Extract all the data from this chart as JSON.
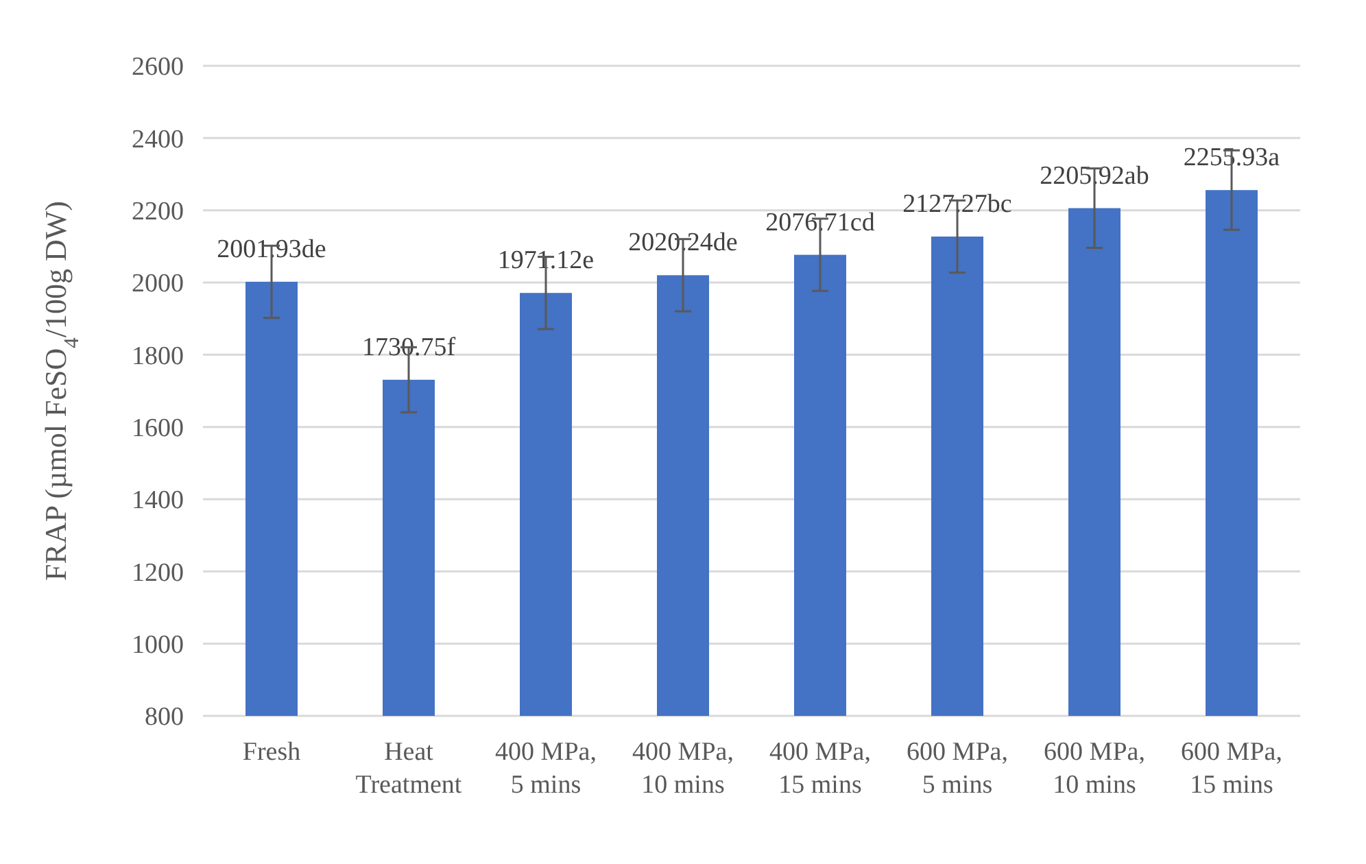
{
  "chart_data": {
    "type": "bar",
    "ylabel": "FRAP (µmol FeSO$_{4}$/100g DW)",
    "categories": [
      "Fresh",
      "Heat Treatment",
      "400 MPa, 5 mins",
      "400 MPa, 10 mins",
      "400 MPa, 15 mins",
      "600 MPa, 5 mins",
      "600 MPa, 10 mins",
      "600 MPa, 15 mins"
    ],
    "values": [
      2001.93,
      1730.75,
      1971.12,
      2020.24,
      2076.71,
      2127.27,
      2205.92,
      2255.93
    ],
    "errors": [
      100,
      90,
      100,
      100,
      100,
      100,
      110,
      110
    ],
    "value_labels": [
      "2001.93de",
      "1730.75f",
      "1971.12e",
      "2020.24de",
      "2076.71cd",
      "2127.27bc",
      "2205.92ab",
      "2255.93a"
    ],
    "color": "#4472c4",
    "ylim": [
      800,
      2600
    ],
    "yticks": [
      800,
      1000,
      1200,
      1400,
      1600,
      1800,
      2000,
      2200,
      2400,
      2600
    ],
    "grid": "y"
  }
}
